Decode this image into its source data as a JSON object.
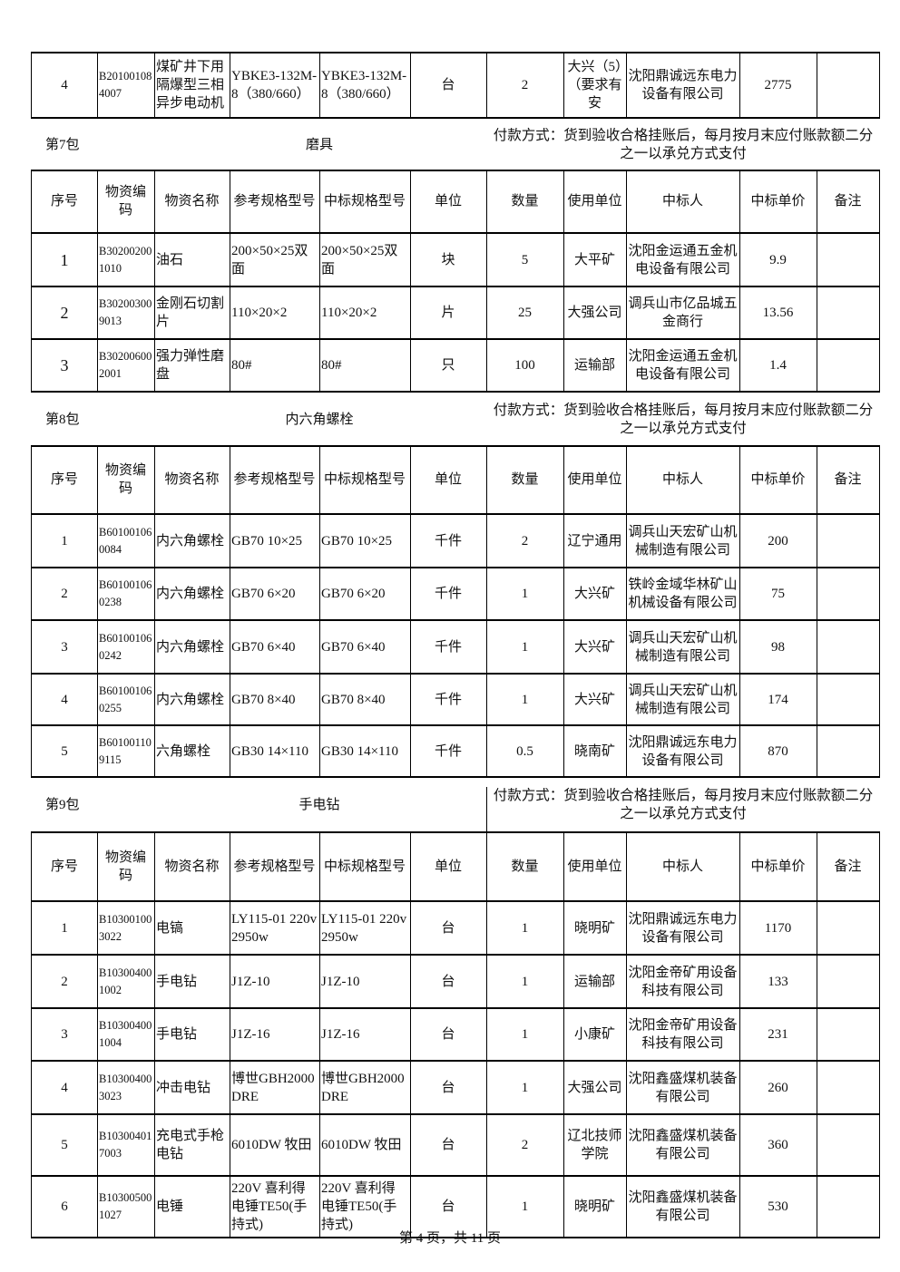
{
  "top_table": {
    "rows": [
      [
        "4",
        "B201001084007",
        "煤矿井下用隔爆型三相异步电动机",
        "YBKE3-132M-8（380/660）",
        "YBKE3-132M-8（380/660）",
        "台",
        "2",
        "大兴（5）（要求有安",
        "沈阳鼎诚远东电力设备有限公司",
        "2775"
      ]
    ]
  },
  "sections": [
    {
      "package": "第7包",
      "name": "磨具",
      "payment": "付款方式：货到验收合格挂账后，每月按月末应付账款额二分之一以承兑方式支付",
      "header": [
        "序号",
        "物资编码",
        "物资名称",
        "参考规格型号",
        "中标规格型号",
        "单位",
        "数量",
        "使用单位",
        "中标人",
        "中标单价",
        "备注"
      ],
      "rows": [
        [
          "1",
          "B302002001010",
          "油石",
          "200×50×25双面",
          "200×50×25双面",
          "块",
          "5",
          "大平矿",
          "沈阳金运通五金机电设备有限公司",
          "9.9"
        ],
        [
          "2",
          "B302003009013",
          "金刚石切割片",
          "110×20×2",
          "110×20×2",
          "片",
          "25",
          "大强公司",
          "调兵山市亿品城五金商行",
          "13.56"
        ],
        [
          "3",
          "B302006002001",
          "强力弹性磨盘",
          "80#",
          "80#",
          "只",
          "100",
          "运输部",
          "沈阳金运通五金机电设备有限公司",
          "1.4"
        ]
      ]
    },
    {
      "package": "第8包",
      "name": "内六角螺栓",
      "payment": "付款方式：货到验收合格挂账后，每月按月末应付账款额二分之一以承兑方式支付",
      "header": [
        "序号",
        "物资编码",
        "物资名称",
        "参考规格型号",
        "中标规格型号",
        "单位",
        "数量",
        "使用单位",
        "中标人",
        "中标单价",
        "备注"
      ],
      "rows": [
        [
          "1",
          "B601001060084",
          "内六角螺栓",
          "GB70 10×25",
          "GB70 10×25",
          "千件",
          "2",
          "辽宁通用",
          "调兵山天宏矿山机械制造有限公司",
          "200"
        ],
        [
          "2",
          "B601001060238",
          "内六角螺栓",
          "GB70 6×20",
          "GB70 6×20",
          "千件",
          "1",
          "大兴矿",
          "铁岭金域华林矿山机械设备有限公司",
          "75"
        ],
        [
          "3",
          "B601001060242",
          "内六角螺栓",
          "GB70 6×40",
          "GB70 6×40",
          "千件",
          "1",
          "大兴矿",
          "调兵山天宏矿山机械制造有限公司",
          "98"
        ],
        [
          "4",
          "B601001060255",
          "内六角螺栓",
          "GB70 8×40",
          "GB70 8×40",
          "千件",
          "1",
          "大兴矿",
          "调兵山天宏矿山机械制造有限公司",
          "174"
        ],
        [
          "5",
          "B601001109115",
          "六角螺栓",
          "GB30 14×110",
          "GB30 14×110",
          "千件",
          "0.5",
          "晓南矿",
          "沈阳鼎诚远东电力设备有限公司",
          "870"
        ]
      ]
    },
    {
      "package": "第9包",
      "name": "手电钻",
      "payment": "付款方式：货到验收合格挂账后，每月按月末应付账款额二分之一以承兑方式支付",
      "header": [
        "序号",
        "物资编码",
        "物资名称",
        "参考规格型号",
        "中标规格型号",
        "单位",
        "数量",
        "使用单位",
        "中标人",
        "中标单价",
        "备注"
      ],
      "rows": [
        [
          "1",
          "B103001003022",
          "电镐",
          "LY115-01 220v 2950w",
          "LY115-01 220v 2950w",
          "台",
          "1",
          "晓明矿",
          "沈阳鼎诚远东电力设备有限公司",
          "1170"
        ],
        [
          "2",
          "B103004001002",
          "手电钻",
          "J1Z-10",
          "J1Z-10",
          "台",
          "1",
          "运输部",
          "沈阳金帝矿用设备科技有限公司",
          "133"
        ],
        [
          "3",
          "B103004001004",
          "手电钻",
          "J1Z-16",
          "J1Z-16",
          "台",
          "1",
          "小康矿",
          "沈阳金帝矿用设备科技有限公司",
          "231"
        ],
        [
          "4",
          "B103004003023",
          "冲击电钻",
          "博世GBH2000DRE",
          "博世GBH2000DRE",
          "台",
          "1",
          "大强公司",
          "沈阳鑫盛煤机装备有限公司",
          "260"
        ],
        [
          "5",
          "B103004017003",
          "充电式手枪电钻",
          "6010DW 牧田",
          "6010DW 牧田",
          "台",
          "2",
          "辽北技师学院",
          "沈阳鑫盛煤机装备有限公司",
          "360"
        ],
        [
          "6",
          "B103005001027",
          "电锤",
          "220V 喜利得电锤TE50(手持式)",
          "220V 喜利得电锤TE50(手持式)",
          "台",
          "1",
          "晓明矿",
          "沈阳鑫盛煤机装备有限公司",
          "530"
        ]
      ]
    }
  ],
  "footer": "第 4 页，共 11 页"
}
